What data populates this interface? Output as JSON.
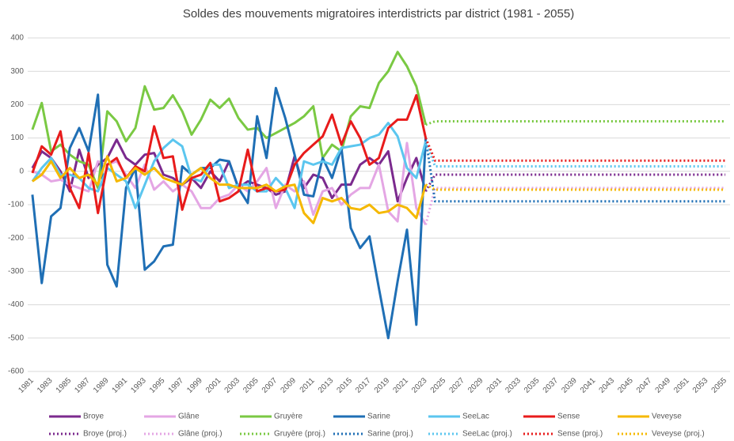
{
  "chart_data": {
    "type": "line",
    "title": "Soldes des mouvements migratoires interdistricts par district (1981 - 2055)",
    "categories": [
      "1981",
      null,
      "1983",
      null,
      "1985",
      null,
      "1987",
      null,
      "1989",
      null,
      "1991",
      null,
      "1993",
      null,
      "1995",
      null,
      "1997",
      null,
      "1999",
      null,
      "2001",
      null,
      "2003",
      null,
      "2005",
      null,
      "2007",
      null,
      "2009",
      null,
      "2011",
      null,
      "2013",
      null,
      "2015",
      null,
      "2017",
      null,
      "2019",
      null,
      "2021",
      null,
      "2023",
      null,
      "2025",
      null,
      "2027",
      null,
      "2029",
      null,
      "2031",
      null,
      "2033",
      null,
      "2035",
      null,
      "2037",
      null,
      "2039",
      null,
      "2041",
      null,
      "2043",
      null,
      "2045",
      null,
      "2047",
      null,
      "2049",
      null,
      "2051",
      null,
      "2053",
      null,
      "2055"
    ],
    "ylim": [
      -600,
      400
    ],
    "yticks": [
      -600,
      -500,
      -400,
      -300,
      -200,
      -100,
      0,
      100,
      200,
      300,
      400
    ],
    "grid": true,
    "legend": "bottom",
    "series": [
      {
        "name": "Broye",
        "color": "#7b2a8e",
        "dash": "solid",
        "values": [
          10,
          60,
          40,
          0,
          -60,
          65,
          -20,
          20,
          40,
          95,
          40,
          20,
          50,
          55,
          -10,
          -20,
          -40,
          -20,
          -50,
          0,
          -30,
          30,
          -50,
          -30,
          -40,
          -50,
          -70,
          -60,
          45,
          -50,
          -10,
          -20,
          -80,
          -40,
          -40,
          20,
          40,
          20,
          60,
          -90,
          -20,
          40,
          -60,
          null,
          null,
          null,
          null,
          null,
          null,
          null,
          null,
          null,
          null,
          null,
          null,
          null,
          null,
          null,
          null,
          null,
          null,
          null,
          null,
          null,
          null,
          null,
          null,
          null,
          null,
          null,
          null,
          null,
          null,
          null,
          null
        ]
      },
      {
        "name": "Glâne",
        "color": "#e4a6e4",
        "dash": "solid",
        "values": [
          0,
          -10,
          -30,
          -25,
          -40,
          -50,
          -60,
          30,
          20,
          30,
          -10,
          -50,
          20,
          -55,
          -30,
          -60,
          -40,
          -60,
          -110,
          -110,
          -80,
          -70,
          -40,
          -60,
          -30,
          10,
          -110,
          -40,
          -60,
          -30,
          -130,
          -60,
          -50,
          -100,
          -70,
          -50,
          -50,
          20,
          -120,
          -150,
          85,
          -110,
          -160,
          null,
          null,
          null,
          null,
          null,
          null,
          null,
          null,
          null,
          null,
          null,
          null,
          null,
          null,
          null,
          null,
          null,
          null,
          null,
          null,
          null,
          null,
          null,
          null,
          null,
          null,
          null,
          null,
          null,
          null,
          null,
          null
        ]
      },
      {
        "name": "Gruyère",
        "color": "#7ac943",
        "dash": "solid",
        "values": [
          125,
          205,
          60,
          80,
          50,
          30,
          20,
          -50,
          180,
          150,
          90,
          130,
          255,
          185,
          190,
          228,
          180,
          110,
          155,
          215,
          190,
          218,
          160,
          125,
          130,
          100,
          115,
          130,
          145,
          165,
          195,
          40,
          80,
          60,
          165,
          195,
          190,
          265,
          300,
          358,
          315,
          255,
          140,
          null,
          null,
          null,
          null,
          null,
          null,
          null,
          null,
          null,
          null,
          null,
          null,
          null,
          null,
          null,
          null,
          null,
          null,
          null,
          null,
          null,
          null,
          null,
          null,
          null,
          null,
          null,
          null,
          null,
          null,
          null,
          null
        ]
      },
      {
        "name": "Sarine",
        "color": "#1f6fb5",
        "dash": "solid",
        "values": [
          -70,
          -335,
          -135,
          -110,
          70,
          130,
          60,
          230,
          -280,
          -345,
          -50,
          10,
          -295,
          -270,
          -225,
          -220,
          15,
          -10,
          10,
          10,
          35,
          30,
          -50,
          -95,
          165,
          40,
          250,
          160,
          50,
          -70,
          -75,
          40,
          -20,
          70,
          -170,
          -230,
          -195,
          -350,
          -500,
          -330,
          -175,
          -460,
          100,
          null,
          null,
          null,
          null,
          null,
          null,
          null,
          null,
          null,
          null,
          null,
          null,
          null,
          null,
          null,
          null,
          null,
          null,
          null,
          null,
          null,
          null,
          null,
          null,
          null,
          null,
          null,
          null,
          null,
          null,
          null,
          null
        ]
      },
      {
        "name": "SeeLac",
        "color": "#5bc6ef",
        "dash": "solid",
        "values": [
          -30,
          10,
          40,
          -10,
          -10,
          -20,
          -50,
          -60,
          10,
          -10,
          -30,
          -110,
          -40,
          30,
          70,
          95,
          75,
          -20,
          -30,
          20,
          20,
          -50,
          -40,
          -40,
          -60,
          -60,
          -20,
          -50,
          -110,
          30,
          20,
          30,
          20,
          70,
          75,
          80,
          100,
          110,
          145,
          105,
          10,
          -20,
          90,
          null,
          null,
          null,
          null,
          null,
          null,
          null,
          null,
          null,
          null,
          null,
          null,
          null,
          null,
          null,
          null,
          null,
          null,
          null,
          null,
          null,
          null,
          null,
          null,
          null,
          null,
          null,
          null,
          null,
          null,
          null,
          null
        ]
      },
      {
        "name": "Sense",
        "color": "#e81b1b",
        "dash": "solid",
        "values": [
          -5,
          75,
          50,
          120,
          -50,
          -110,
          55,
          -125,
          20,
          40,
          -20,
          15,
          0,
          135,
          40,
          45,
          -115,
          -20,
          -10,
          25,
          -90,
          -80,
          -60,
          65,
          -60,
          -50,
          -60,
          -55,
          20,
          55,
          80,
          105,
          170,
          80,
          150,
          100,
          20,
          40,
          130,
          155,
          155,
          228,
          100,
          null,
          null,
          null,
          null,
          null,
          null,
          null,
          null,
          null,
          null,
          null,
          null,
          null,
          null,
          null,
          null,
          null,
          null,
          null,
          null,
          null,
          null,
          null,
          null,
          null,
          null,
          null,
          null,
          null,
          null,
          null,
          null
        ]
      },
      {
        "name": "Veveyse",
        "color": "#f5b800",
        "dash": "solid",
        "values": [
          -30,
          -10,
          30,
          -20,
          10,
          -20,
          -10,
          -40,
          45,
          -30,
          -20,
          10,
          -10,
          10,
          -20,
          -30,
          -40,
          -10,
          10,
          -20,
          -40,
          -40,
          -50,
          -50,
          -50,
          -40,
          -60,
          -45,
          -40,
          -125,
          -155,
          -80,
          -90,
          -80,
          -110,
          -115,
          -100,
          -125,
          -120,
          -100,
          -110,
          -140,
          -40,
          null,
          null,
          null,
          null,
          null,
          null,
          null,
          null,
          null,
          null,
          null,
          null,
          null,
          null,
          null,
          null,
          null,
          null,
          null,
          null,
          null,
          null,
          null,
          null,
          null,
          null,
          null,
          null,
          null,
          null,
          null,
          null
        ]
      },
      {
        "name": "Broye (proj.)",
        "color": "#7b2a8e",
        "dash": "dotted",
        "values": [
          null,
          null,
          null,
          null,
          null,
          null,
          null,
          null,
          null,
          null,
          null,
          null,
          null,
          null,
          null,
          null,
          null,
          null,
          null,
          null,
          null,
          null,
          null,
          null,
          null,
          null,
          null,
          null,
          null,
          null,
          null,
          null,
          null,
          null,
          null,
          null,
          null,
          null,
          null,
          null,
          null,
          null,
          -60,
          -10,
          -10,
          -10,
          -10,
          -10,
          -10,
          -10,
          -10,
          -10,
          -10,
          -10,
          -10,
          -10,
          -10,
          -10,
          -10,
          -10,
          -10,
          -10,
          -10,
          -10,
          -10,
          -10,
          -10,
          -10,
          -10,
          -10,
          -10,
          -10,
          -10,
          -10,
          -10
        ]
      },
      {
        "name": "Glâne (proj.)",
        "color": "#e4a6e4",
        "dash": "dotted",
        "values": [
          null,
          null,
          null,
          null,
          null,
          null,
          null,
          null,
          null,
          null,
          null,
          null,
          null,
          null,
          null,
          null,
          null,
          null,
          null,
          null,
          null,
          null,
          null,
          null,
          null,
          null,
          null,
          null,
          null,
          null,
          null,
          null,
          null,
          null,
          null,
          null,
          null,
          null,
          null,
          null,
          null,
          null,
          -160,
          -50,
          -50,
          -50,
          -50,
          -50,
          -50,
          -50,
          -50,
          -50,
          -50,
          -50,
          -50,
          -50,
          -50,
          -50,
          -50,
          -50,
          -50,
          -50,
          -50,
          -50,
          -50,
          -50,
          -50,
          -50,
          -50,
          -50,
          -50,
          -50,
          -50,
          -50,
          -50
        ]
      },
      {
        "name": "Gruyère (proj.)",
        "color": "#7ac943",
        "dash": "dotted",
        "values": [
          null,
          null,
          null,
          null,
          null,
          null,
          null,
          null,
          null,
          null,
          null,
          null,
          null,
          null,
          null,
          null,
          null,
          null,
          null,
          null,
          null,
          null,
          null,
          null,
          null,
          null,
          null,
          null,
          null,
          null,
          null,
          null,
          null,
          null,
          null,
          null,
          null,
          null,
          null,
          null,
          null,
          null,
          140,
          150,
          150,
          150,
          150,
          150,
          150,
          150,
          150,
          150,
          150,
          150,
          150,
          150,
          150,
          150,
          150,
          150,
          150,
          150,
          150,
          150,
          150,
          150,
          150,
          150,
          150,
          150,
          150,
          150,
          150,
          150,
          150
        ]
      },
      {
        "name": "Sarine (proj.)",
        "color": "#1f6fb5",
        "dash": "dotted",
        "values": [
          null,
          null,
          null,
          null,
          null,
          null,
          null,
          null,
          null,
          null,
          null,
          null,
          null,
          null,
          null,
          null,
          null,
          null,
          null,
          null,
          null,
          null,
          null,
          null,
          null,
          null,
          null,
          null,
          null,
          null,
          null,
          null,
          null,
          null,
          null,
          null,
          null,
          null,
          null,
          null,
          null,
          null,
          100,
          -90,
          -90,
          -90,
          -90,
          -90,
          -90,
          -90,
          -90,
          -90,
          -90,
          -90,
          -90,
          -90,
          -90,
          -90,
          -90,
          -90,
          -90,
          -90,
          -90,
          -90,
          -90,
          -90,
          -90,
          -90,
          -90,
          -90,
          -90,
          -90,
          -90,
          -90,
          -90
        ]
      },
      {
        "name": "SeeLac (proj.)",
        "color": "#5bc6ef",
        "dash": "dotted",
        "values": [
          null,
          null,
          null,
          null,
          null,
          null,
          null,
          null,
          null,
          null,
          null,
          null,
          null,
          null,
          null,
          null,
          null,
          null,
          null,
          null,
          null,
          null,
          null,
          null,
          null,
          null,
          null,
          null,
          null,
          null,
          null,
          null,
          null,
          null,
          null,
          null,
          null,
          null,
          null,
          null,
          null,
          null,
          90,
          15,
          15,
          15,
          15,
          15,
          15,
          15,
          15,
          15,
          15,
          15,
          15,
          15,
          15,
          15,
          15,
          15,
          15,
          15,
          15,
          15,
          15,
          15,
          15,
          15,
          15,
          15,
          15,
          15,
          15,
          15,
          15
        ]
      },
      {
        "name": "Sense (proj.)",
        "color": "#e81b1b",
        "dash": "dotted",
        "values": [
          null,
          null,
          null,
          null,
          null,
          null,
          null,
          null,
          null,
          null,
          null,
          null,
          null,
          null,
          null,
          null,
          null,
          null,
          null,
          null,
          null,
          null,
          null,
          null,
          null,
          null,
          null,
          null,
          null,
          null,
          null,
          null,
          null,
          null,
          null,
          null,
          null,
          null,
          null,
          null,
          null,
          null,
          100,
          32,
          32,
          32,
          32,
          32,
          32,
          32,
          32,
          32,
          32,
          32,
          32,
          32,
          32,
          32,
          32,
          32,
          32,
          32,
          32,
          32,
          32,
          32,
          32,
          32,
          32,
          32,
          32,
          32,
          32,
          32,
          32
        ]
      },
      {
        "name": "Veveyse (proj.)",
        "color": "#f5b800",
        "dash": "dotted",
        "values": [
          null,
          null,
          null,
          null,
          null,
          null,
          null,
          null,
          null,
          null,
          null,
          null,
          null,
          null,
          null,
          null,
          null,
          null,
          null,
          null,
          null,
          null,
          null,
          null,
          null,
          null,
          null,
          null,
          null,
          null,
          null,
          null,
          null,
          null,
          null,
          null,
          null,
          null,
          null,
          null,
          null,
          null,
          -40,
          -55,
          -55,
          -55,
          -55,
          -55,
          -55,
          -55,
          -55,
          -55,
          -55,
          -55,
          -55,
          -55,
          -55,
          -55,
          -55,
          -55,
          -55,
          -55,
          -55,
          -55,
          -55,
          -55,
          -55,
          -55,
          -55,
          -55,
          -55,
          -55,
          -55,
          -55,
          -55
        ]
      }
    ]
  }
}
